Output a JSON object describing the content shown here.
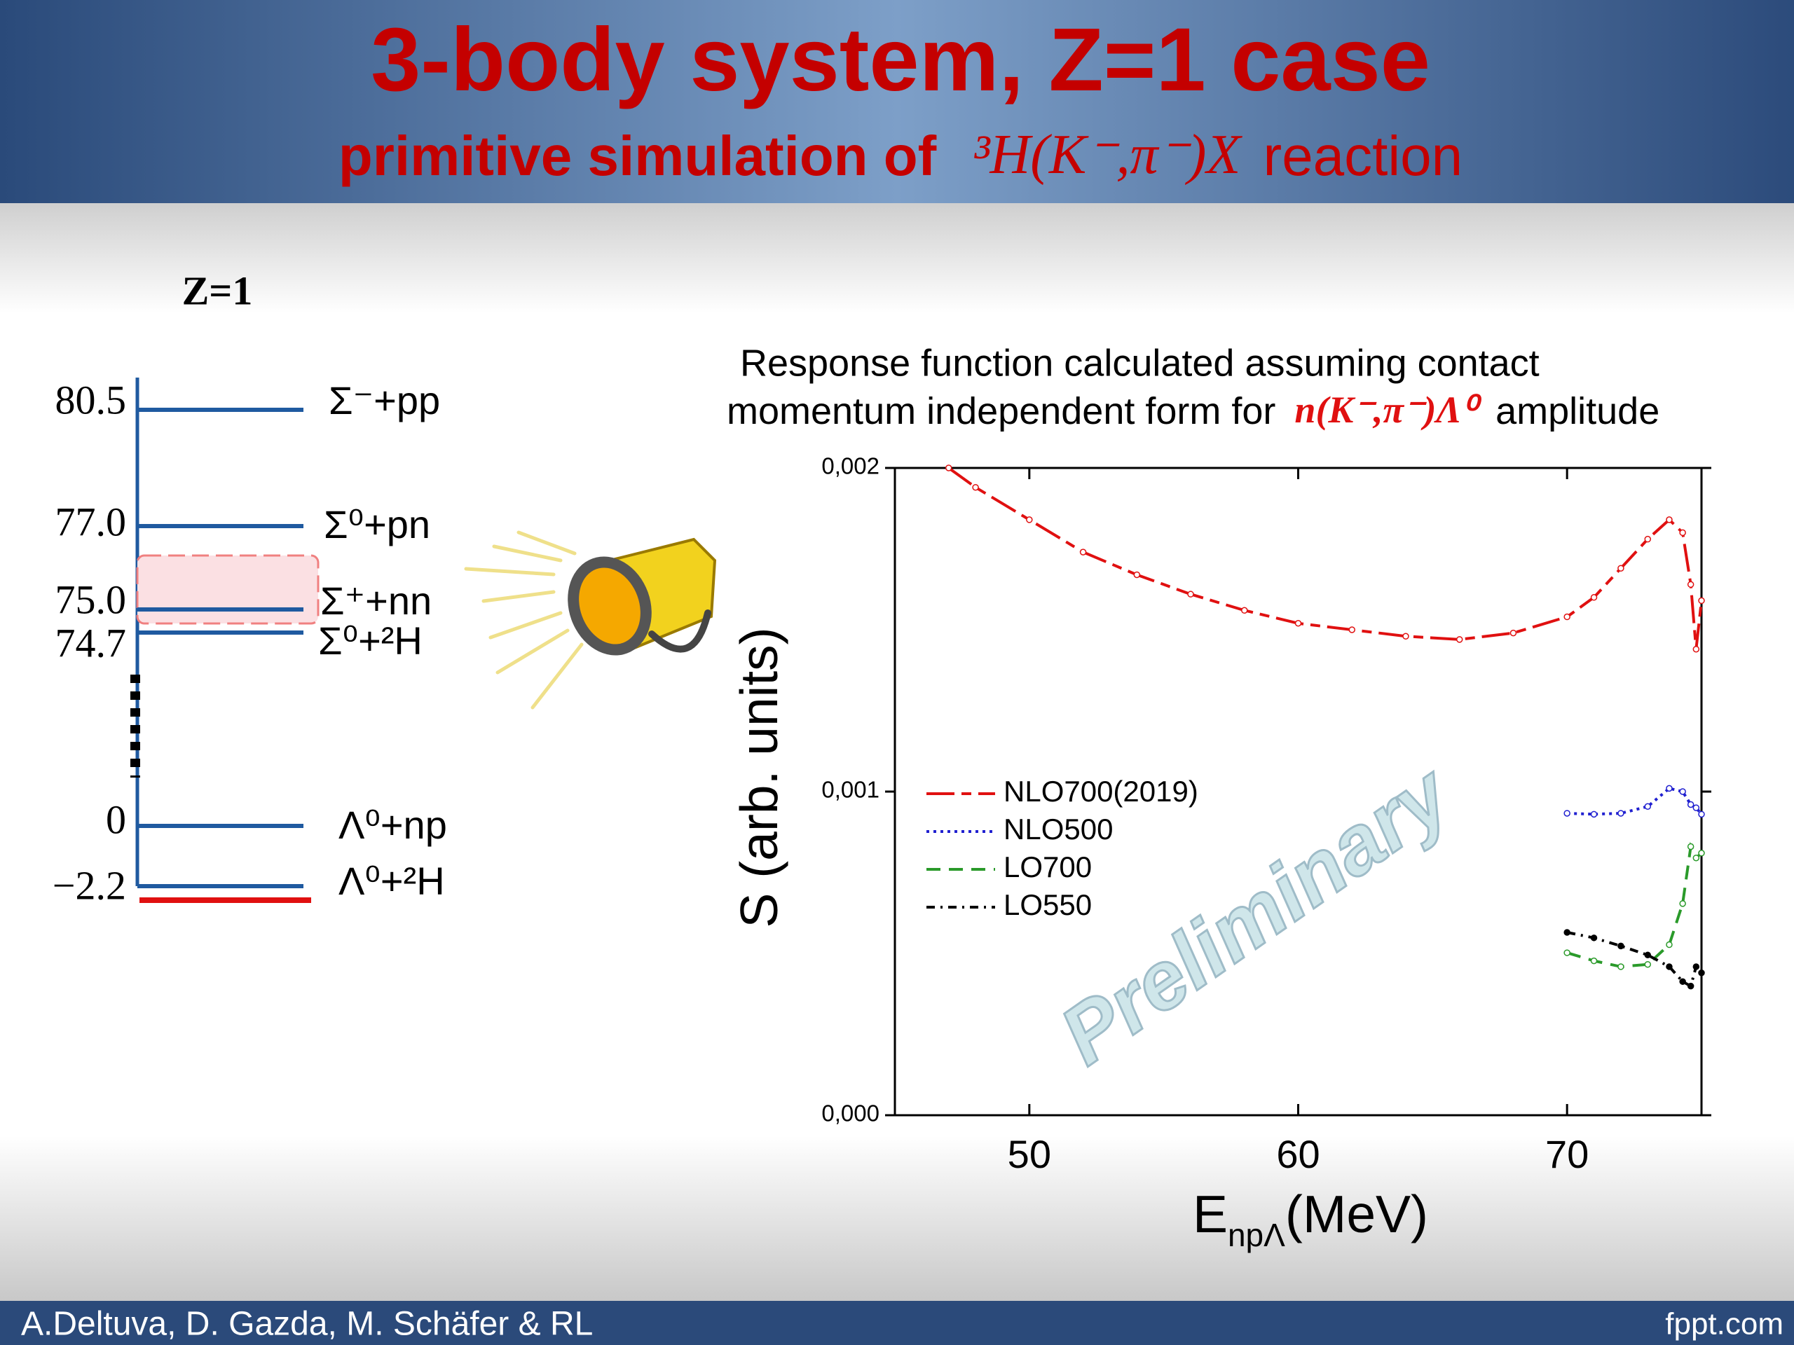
{
  "header": {
    "title": "3-body system, Z=1 case",
    "subtitle": [
      "primitive simulation of",
      "³H(K⁻,π⁻)X",
      "reaction"
    ]
  },
  "level_diagram": {
    "title": "Z=1",
    "levels": [
      {
        "energy": "80.5",
        "channel": "Σ⁻+pp"
      },
      {
        "energy": "77.0",
        "channel": "Σ⁰+pn"
      },
      {
        "energy": "75.0",
        "channel": "Σ⁺+nn"
      },
      {
        "energy": "74.7",
        "channel": "Σ⁰+²H"
      },
      {
        "energy": "0",
        "channel": "Λ⁰+np"
      },
      {
        "energy": "−2.2",
        "channel": "Λ⁰+²H"
      }
    ]
  },
  "chart_data": {
    "type": "line",
    "title": [
      "Response function calculated assuming contact",
      "momentum independent form for",
      "n(K⁻,π⁻)Λ⁰",
      "amplitude"
    ],
    "x_label": {
      "main": "E",
      "sub": "npΛ",
      "unit": "(MeV)"
    },
    "y_label": "S (arb. units)",
    "watermark": "Preliminary",
    "x": [
      47,
      48,
      50,
      52,
      54,
      56,
      58,
      60,
      62,
      64,
      66,
      68,
      70,
      71,
      72,
      73,
      73.8,
      74.3,
      74.6,
      74.8,
      75
    ],
    "series": [
      {
        "name": "NLO700(2019)",
        "color": "#e01010",
        "values": [
          0.002,
          0.00194,
          0.00184,
          0.00174,
          0.00167,
          0.00161,
          0.00156,
          0.00152,
          0.0015,
          0.00148,
          0.00147,
          0.00149,
          0.00154,
          0.0016,
          0.00169,
          0.00178,
          0.00184,
          0.0018,
          0.00164,
          0.00144,
          0.00159
        ]
      },
      {
        "name": "NLO500",
        "color": "#2020d0",
        "values": [
          null,
          null,
          null,
          null,
          null,
          null,
          null,
          null,
          null,
          null,
          null,
          null,
          0.000933,
          0.00093,
          0.000933,
          0.000954,
          0.00101,
          0.001,
          0.00096,
          0.00095,
          0.00093
        ]
      },
      {
        "name": "LO700",
        "color": "#2a9a2a",
        "values": [
          null,
          null,
          null,
          null,
          null,
          null,
          null,
          null,
          null,
          null,
          null,
          null,
          0.000502,
          0.000477,
          0.000459,
          0.000466,
          0.000527,
          0.000654,
          0.00083,
          0.000795,
          0.00081
        ]
      },
      {
        "name": "LO550",
        "color": "#000000",
        "values": [
          null,
          null,
          null,
          null,
          null,
          null,
          null,
          null,
          null,
          null,
          null,
          null,
          0.000565,
          0.000548,
          0.000523,
          0.000495,
          0.000459,
          0.000413,
          0.000399,
          0.000459,
          0.00044
        ]
      }
    ],
    "xlim": [
      45,
      75
    ],
    "xticks": [
      50,
      60,
      70
    ],
    "ylim": [
      0,
      0.002
    ],
    "yticks": [
      {
        "value": 0,
        "label": "0,000"
      },
      {
        "value": 0.001,
        "label": "0,001"
      },
      {
        "value": 0.002,
        "label": "0,002"
      }
    ]
  },
  "footer": {
    "authors": "A.Deltuva, D. Gazda, M. Schäfer & RL",
    "site": "fppt.com"
  }
}
